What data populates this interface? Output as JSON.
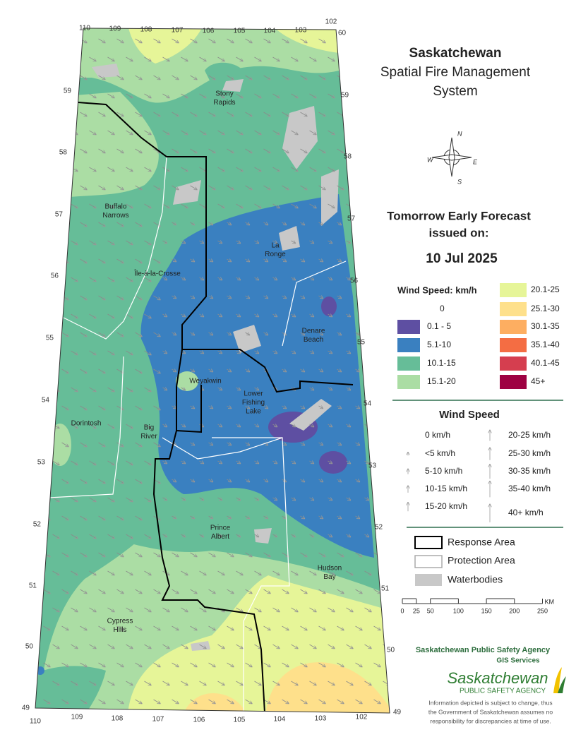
{
  "title": {
    "line1": "Saskatchewan",
    "line2": "Spatial Fire Management",
    "line3": "System"
  },
  "compass": {
    "n": "N",
    "e": "E",
    "s": "S",
    "w": "W"
  },
  "forecast": {
    "heading": "Tomorrow Early Forecast",
    "issued": "issued on:",
    "date": "10 Jul 2025"
  },
  "wind_legend": {
    "title": "Wind Speed: km/h",
    "classes": [
      {
        "label": "0",
        "color": "#ffffff"
      },
      {
        "label": "0.1 - 5",
        "color": "#5e4fa2"
      },
      {
        "label": "5.1-10",
        "color": "#3a80c0"
      },
      {
        "label": "10.1-15",
        "color": "#66bd98"
      },
      {
        "label": "15.1-20",
        "color": "#abdda4"
      },
      {
        "label": "20.1-25",
        "color": "#e6f598"
      },
      {
        "label": "25.1-30",
        "color": "#fee08b"
      },
      {
        "label": "30.1-35",
        "color": "#fdae61"
      },
      {
        "label": "35.1-40",
        "color": "#f46d43"
      },
      {
        "label": "40.1-45",
        "color": "#d53e4f"
      },
      {
        "label": "45+",
        "color": "#9e0142"
      }
    ]
  },
  "arrow_legend": {
    "title": "Wind Speed",
    "items": [
      "0 km/h",
      "<5 km/h",
      "5-10 km/h",
      "10-15 km/h",
      "15-20 km/h",
      "20-25 km/h",
      "25-30 km/h",
      "30-35 km/h",
      "35-40 km/h",
      "40+ km/h"
    ]
  },
  "layers": [
    "Response Area",
    "Protection Area",
    "Waterbodies"
  ],
  "scale_bar": {
    "ticks": [
      0,
      25,
      50,
      100,
      150,
      200,
      250
    ],
    "unit": "KM"
  },
  "places": [
    {
      "lines": [
        "Stony",
        "Rapids"
      ]
    },
    {
      "lines": [
        "Buffalo",
        "Narrows"
      ]
    },
    {
      "lines": [
        "La",
        "Ronge"
      ]
    },
    {
      "lines": [
        "Île-à-la-Crosse"
      ]
    },
    {
      "lines": [
        "Denare",
        "Beach"
      ]
    },
    {
      "lines": [
        "Weyakwin"
      ]
    },
    {
      "lines": [
        "Lower",
        "Fishing",
        "Lake"
      ]
    },
    {
      "lines": [
        "Dorintosh"
      ]
    },
    {
      "lines": [
        "Big",
        "River"
      ]
    },
    {
      "lines": [
        "Prince",
        "Albert"
      ]
    },
    {
      "lines": [
        "Hudson",
        "Bay"
      ]
    },
    {
      "lines": [
        "Cypress",
        "Hills"
      ]
    }
  ],
  "graticule": {
    "top": [
      110,
      109,
      108,
      107,
      106,
      105,
      104,
      103,
      102
    ],
    "bottom": [
      110,
      109,
      108,
      107,
      106,
      105,
      104,
      103,
      102
    ],
    "left": [
      59,
      58,
      57,
      56,
      55,
      54,
      53,
      52,
      51,
      50,
      49
    ],
    "right": [
      60,
      59,
      58,
      57,
      56,
      55,
      54,
      53,
      52,
      51,
      50,
      49
    ]
  },
  "agency": {
    "name": "Saskatchewan Public Safety Agency",
    "unit": "GIS  Services",
    "logo_main": "Saskatchewan",
    "logo_sub": "PUBLIC SAFETY AGENCY",
    "disclaimer": [
      "Information depicted is subject to change, thus",
      "the Government of Saskatchewan assumes no",
      "responsibility for discrepancies at time of use."
    ]
  }
}
